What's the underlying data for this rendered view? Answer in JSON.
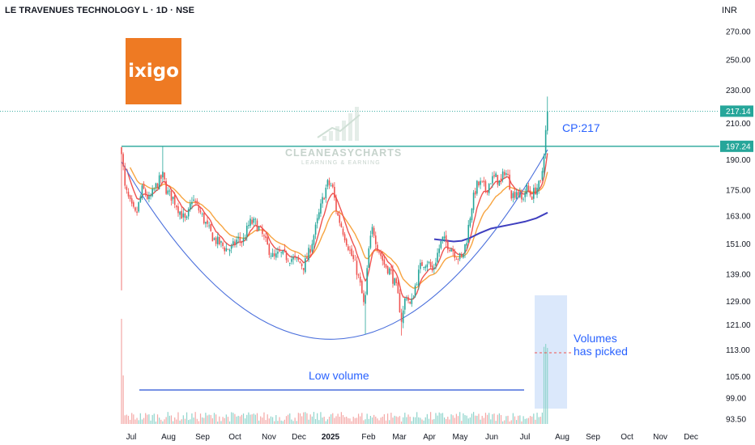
{
  "header": {
    "title": "LE TRAVENUES TECHNOLOGY L · 1D · NSE",
    "currency": "INR"
  },
  "logo": {
    "text": "ixigo",
    "color": "#ee7a23"
  },
  "watermark": {
    "name": "CLEANEASYCHARTS",
    "tagline": "LEARNING & EARNING"
  },
  "colors": {
    "up": "#26a69a",
    "down": "#ef5350",
    "ema_fast": "#ef5350",
    "ema_slow": "#f7a440",
    "long_ma": "#3f3fbf",
    "cup_curve": "#4a6fdc",
    "breakout_line": "#26a69a",
    "annotation_text": "#2962ff"
  },
  "chart_data": {
    "type": "candlestick",
    "y_axis": {
      "scale": "log",
      "ticks": [
        "270.00",
        "250.00",
        "230.00",
        "210.00",
        "190.00",
        "175.00",
        "163.00",
        "151.00",
        "139.00",
        "129.00",
        "121.00",
        "113.00",
        "105.00",
        "99.00",
        "93.50"
      ],
      "price_labels": [
        {
          "value": "217.14",
          "color": "#26a69a"
        },
        {
          "value": "197.24",
          "color": "#26a69a"
        }
      ]
    },
    "x_axis": {
      "ticks": [
        "Jul",
        "Aug",
        "Sep",
        "Oct",
        "Nov",
        "Dec",
        "2025",
        "Feb",
        "Mar",
        "Apr",
        "May",
        "Jun",
        "Jul",
        "Aug",
        "Sep",
        "Oct",
        "Nov",
        "Dec"
      ]
    },
    "price_range_shown": [
      95,
      226
    ],
    "current_price": 217.14,
    "resistance_level": 197.24,
    "cup_bottom": 117,
    "annotations": {
      "cp_label": "CP:217",
      "volume_label_line1": "Volumes",
      "volume_label_line2": "has picked",
      "low_volume_label": "Low volume"
    }
  }
}
